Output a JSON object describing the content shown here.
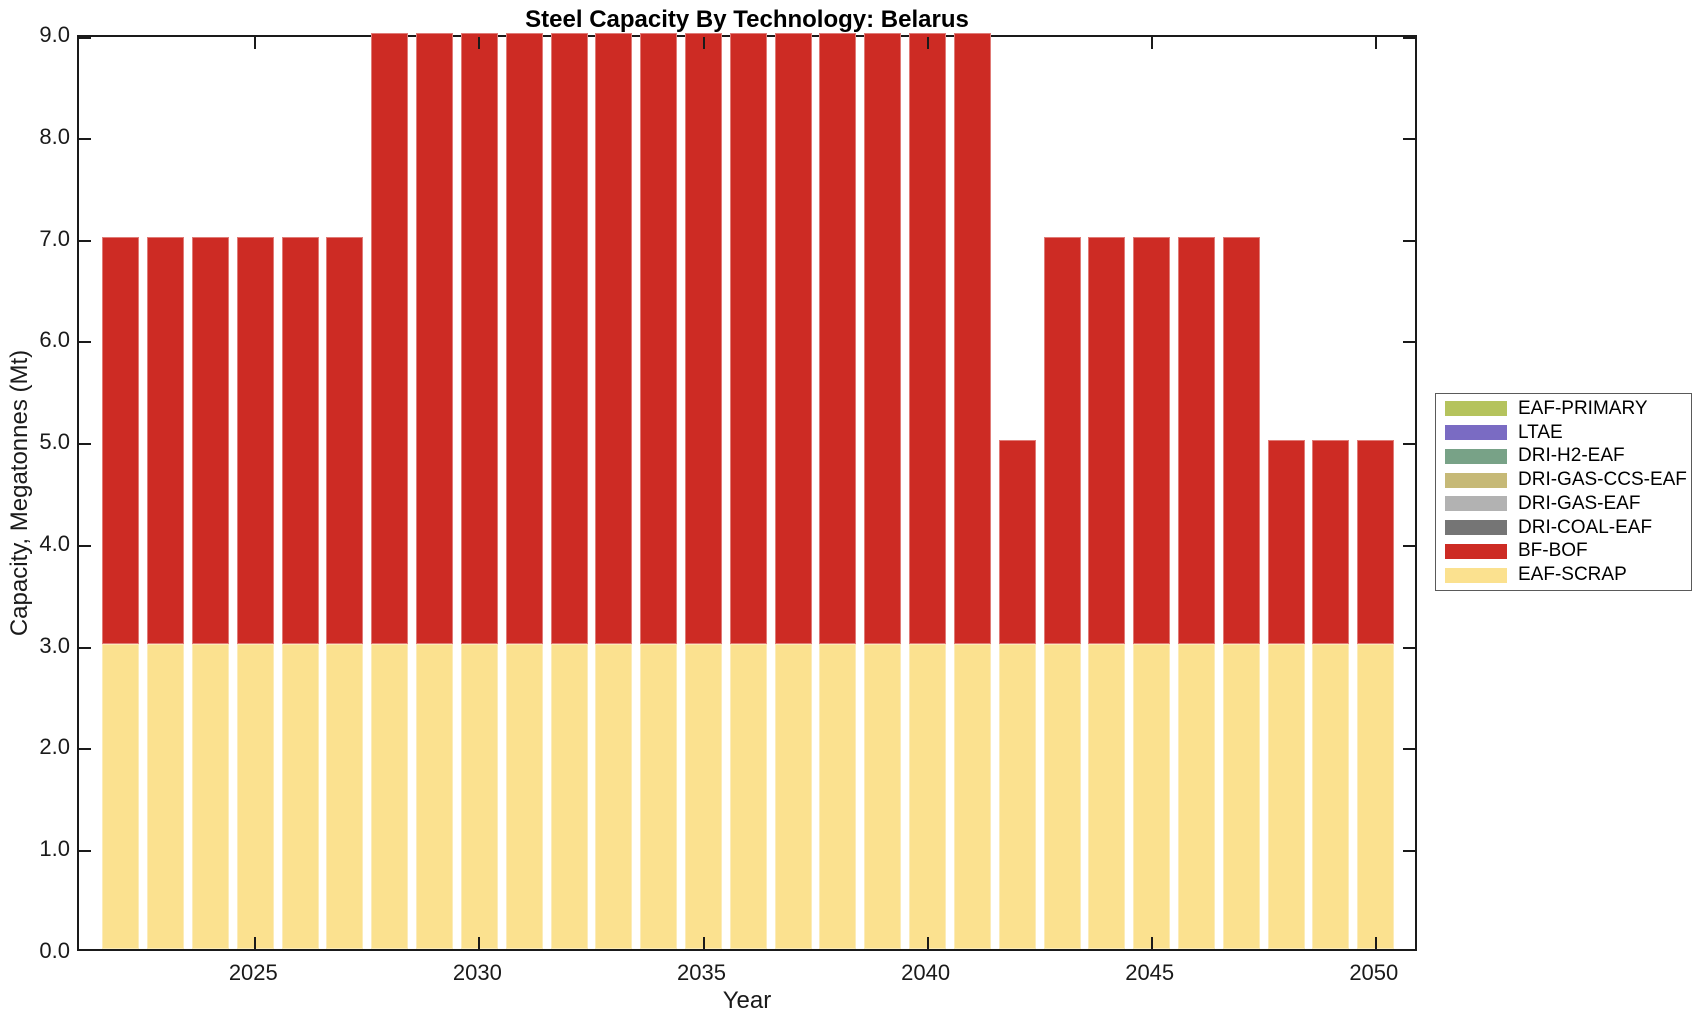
{
  "chart_data": {
    "type": "bar",
    "stacked": true,
    "title": "Steel Capacity By Technology: Belarus",
    "xlabel": "Year",
    "ylabel": "Capacity, Megatonnes (Mt)",
    "x": [
      2022,
      2023,
      2024,
      2025,
      2026,
      2027,
      2028,
      2029,
      2030,
      2031,
      2032,
      2033,
      2034,
      2035,
      2036,
      2037,
      2038,
      2039,
      2040,
      2041,
      2042,
      2043,
      2044,
      2045,
      2046,
      2047,
      2048,
      2049,
      2050
    ],
    "series": [
      {
        "name": "EAF-SCRAP",
        "color": "#fbe18f",
        "values": [
          3,
          3,
          3,
          3,
          3,
          3,
          3,
          3,
          3,
          3,
          3,
          3,
          3,
          3,
          3,
          3,
          3,
          3,
          3,
          3,
          3,
          3,
          3,
          3,
          3,
          3,
          3,
          3,
          3
        ]
      },
      {
        "name": "BF-BOF",
        "color": "#cd2b24",
        "values": [
          4,
          4,
          4,
          4,
          4,
          4,
          6,
          6,
          6,
          6,
          6,
          6,
          6,
          6,
          6,
          6,
          6,
          6,
          6,
          6,
          2,
          4,
          4,
          4,
          4,
          4,
          2,
          2,
          2
        ]
      },
      {
        "name": "DRI-COAL-EAF",
        "color": "#757575",
        "values": [
          0,
          0,
          0,
          0,
          0,
          0,
          0,
          0,
          0,
          0,
          0,
          0,
          0,
          0,
          0,
          0,
          0,
          0,
          0,
          0,
          0,
          0,
          0,
          0,
          0,
          0,
          0,
          0,
          0
        ]
      },
      {
        "name": "DRI-GAS-EAF",
        "color": "#b2b2b2",
        "values": [
          0,
          0,
          0,
          0,
          0,
          0,
          0,
          0,
          0,
          0,
          0,
          0,
          0,
          0,
          0,
          0,
          0,
          0,
          0,
          0,
          0,
          0,
          0,
          0,
          0,
          0,
          0,
          0,
          0
        ]
      },
      {
        "name": "DRI-GAS-CCS-EAF",
        "color": "#c6b977",
        "values": [
          0,
          0,
          0,
          0,
          0,
          0,
          0,
          0,
          0,
          0,
          0,
          0,
          0,
          0,
          0,
          0,
          0,
          0,
          0,
          0,
          0,
          0,
          0,
          0,
          0,
          0,
          0,
          0,
          0
        ]
      },
      {
        "name": "DRI-H2-EAF",
        "color": "#78a287",
        "values": [
          0,
          0,
          0,
          0,
          0,
          0,
          0,
          0,
          0,
          0,
          0,
          0,
          0,
          0,
          0,
          0,
          0,
          0,
          0,
          0,
          0,
          0,
          0,
          0,
          0,
          0,
          0,
          0,
          0
        ]
      },
      {
        "name": "LTAE",
        "color": "#7a6bc3",
        "values": [
          0,
          0,
          0,
          0,
          0,
          0,
          0,
          0,
          0,
          0,
          0,
          0,
          0,
          0,
          0,
          0,
          0,
          0,
          0,
          0,
          0,
          0,
          0,
          0,
          0,
          0,
          0,
          0,
          0
        ]
      },
      {
        "name": "EAF-PRIMARY",
        "color": "#b5c35d",
        "values": [
          0,
          0,
          0,
          0,
          0,
          0,
          0,
          0,
          0,
          0,
          0,
          0,
          0,
          0,
          0,
          0,
          0,
          0,
          0,
          0,
          0,
          0,
          0,
          0,
          0,
          0,
          0,
          0,
          0
        ]
      }
    ],
    "legend_entries": [
      "EAF-PRIMARY",
      "LTAE",
      "DRI-H2-EAF",
      "DRI-GAS-CCS-EAF",
      "DRI-GAS-EAF",
      "DRI-COAL-EAF",
      "BF-BOF",
      "EAF-SCRAP"
    ],
    "legend_position": "right-outside",
    "ylim": [
      0,
      9
    ],
    "y_ticks": [
      0,
      1,
      2,
      3,
      4,
      5,
      6,
      7,
      8,
      9
    ],
    "y_tick_labels": [
      "0.0",
      "1.0",
      "2.0",
      "3.0",
      "4.0",
      "5.0",
      "6.0",
      "7.0",
      "8.0",
      "9.0"
    ],
    "x_ticks": [
      2025,
      2030,
      2035,
      2040,
      2045,
      2050
    ],
    "x_tick_labels": [
      "2025",
      "2030",
      "2035",
      "2040",
      "2045",
      "2050"
    ],
    "grid": false,
    "axis_color": "#1a1a1a",
    "background_color": "#ffffff"
  }
}
